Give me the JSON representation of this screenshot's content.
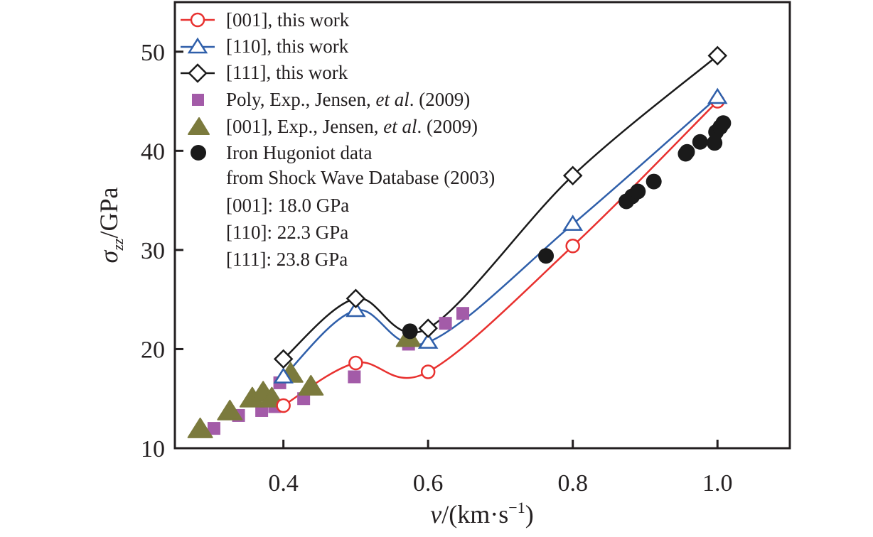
{
  "chart_data": {
    "type": "scatter",
    "title": "",
    "xlabel": "v/(km·s⁻¹)",
    "xlabel_parts": {
      "var": "v",
      "unit": "/(km·s",
      "sup": "−1",
      "close": ")"
    },
    "ylabel": "σzz/GPa",
    "ylabel_parts": {
      "var": "σ",
      "sub": "zz",
      "unit": "/GPa"
    },
    "xlim": [
      0.25,
      1.1
    ],
    "ylim": [
      10,
      55
    ],
    "xticks": [
      0.4,
      0.6,
      0.8,
      1.0
    ],
    "xtick_labels": [
      "0.4",
      "0.6",
      "0.8",
      "1.0"
    ],
    "yticks": [
      10,
      20,
      30,
      40,
      50
    ],
    "ytick_labels": [
      "10",
      "20",
      "30",
      "40",
      "50"
    ],
    "grid": false,
    "legend_position": "top-left",
    "series": [
      {
        "name": "[001], this work",
        "marker": "open-circle",
        "line": "spline",
        "color": "#e8312f",
        "x": [
          0.4,
          0.5,
          0.6,
          0.8,
          1.0
        ],
        "y": [
          14.3,
          18.6,
          17.7,
          30.4,
          45.0
        ]
      },
      {
        "name": "[110], this work",
        "marker": "open-triangle",
        "line": "spline",
        "color": "#2f5faa",
        "x": [
          0.4,
          0.5,
          0.6,
          0.8,
          1.0
        ],
        "y": [
          17.2,
          23.9,
          20.7,
          32.6,
          45.4
        ]
      },
      {
        "name": "[111], this work",
        "marker": "open-diamond",
        "line": "spline",
        "color": "#1a1a1a",
        "x": [
          0.4,
          0.5,
          0.6,
          0.8,
          1.0
        ],
        "y": [
          19.0,
          25.1,
          22.1,
          37.5,
          49.6
        ]
      },
      {
        "name": "Poly, Exp., Jensen, et al. (2009)",
        "name_parts": [
          "Poly, Exp., Jensen, ",
          "et al",
          ". (2009)"
        ],
        "marker": "filled-square",
        "line": "none",
        "color": "#a35ba8",
        "x": [
          0.304,
          0.338,
          0.37,
          0.388,
          0.395,
          0.428,
          0.498,
          0.573,
          0.624,
          0.648
        ],
        "y": [
          12.0,
          13.3,
          13.8,
          14.2,
          16.6,
          15.0,
          17.2,
          20.5,
          22.6,
          23.6
        ]
      },
      {
        "name": "[001], Exp., Jensen, et al. (2009)",
        "name_parts": [
          "[001], Exp., Jensen, ",
          "et al",
          ". (2009)"
        ],
        "marker": "filled-triangle",
        "line": "none",
        "color": "#7b7a3d",
        "x": [
          0.285,
          0.326,
          0.357,
          0.372,
          0.384,
          0.41,
          0.438,
          0.573
        ],
        "y": [
          11.8,
          13.6,
          14.9,
          15.5,
          14.9,
          17.4,
          16.1,
          21.0
        ]
      },
      {
        "name": "Iron Hugoniot data from Shock Wave Database (2003)",
        "name_lines": [
          "Iron Hugoniot data",
          "from Shock Wave Database (2003)"
        ],
        "marker": "filled-circle",
        "line": "none",
        "color": "#1a1a1a",
        "x": [
          0.575,
          0.763,
          0.874,
          0.882,
          0.89,
          0.912,
          0.956,
          0.958,
          0.976,
          0.996,
          0.998,
          1.004,
          1.008
        ],
        "y": [
          21.8,
          29.4,
          34.9,
          35.4,
          35.9,
          36.9,
          39.7,
          39.9,
          40.9,
          40.8,
          41.9,
          42.4,
          42.8
        ]
      }
    ],
    "annotations": [
      "[001]: 18.0 GPa",
      "[110]: 22.3 GPa",
      "[111]: 23.8 GPa"
    ]
  }
}
